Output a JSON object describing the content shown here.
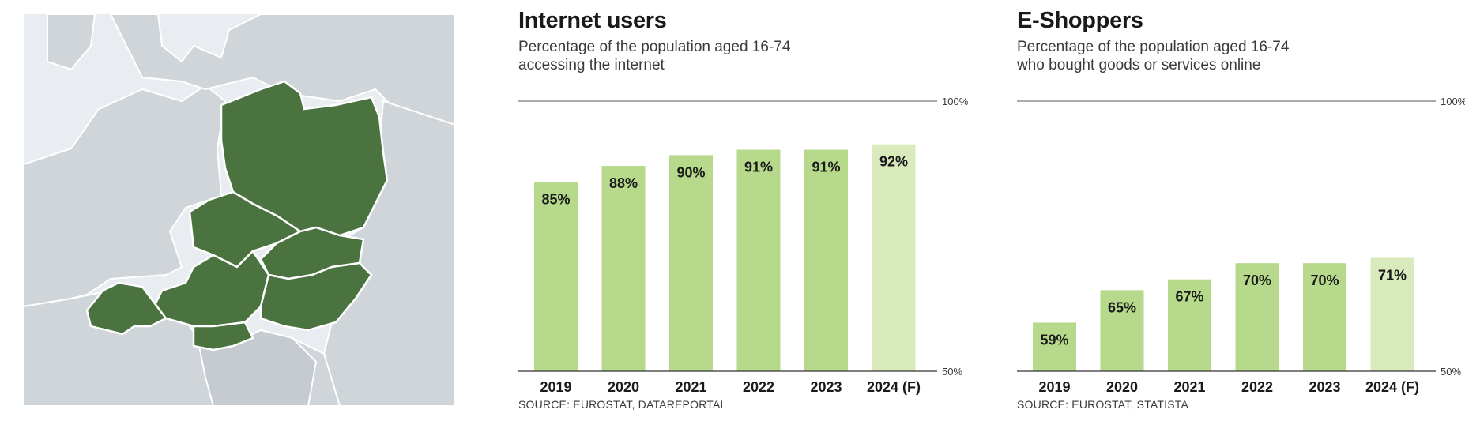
{
  "colors": {
    "bar": "#b6d98b",
    "bar_forecast": "#d9eabd",
    "map_highlight": "#4a7340",
    "map_land": "#d0d5da",
    "map_sea": "#e9edf1",
    "map_border": "#ffffff"
  },
  "chart_data": [
    {
      "type": "bar",
      "title": "Internet users",
      "subtitle_line1": "Percentage of the population aged 16-74",
      "subtitle_line2": "accessing the internet",
      "categories": [
        "2019",
        "2020",
        "2021",
        "2022",
        "2023",
        "2024 (F)"
      ],
      "values": [
        85,
        88,
        90,
        91,
        91,
        92
      ],
      "value_labels": [
        "85%",
        "88%",
        "90%",
        "91%",
        "91%",
        "92%"
      ],
      "forecast_index": 5,
      "ylim": [
        50,
        100
      ],
      "ref_labels": {
        "top": "100%",
        "bottom": "50%"
      },
      "source": "SOURCE: EUROSTAT, DATAREPORTAL"
    },
    {
      "type": "bar",
      "title": "E-Shoppers",
      "subtitle_line1": "Percentage of the population aged 16-74",
      "subtitle_line2": "who bought goods or services online",
      "categories": [
        "2019",
        "2020",
        "2021",
        "2022",
        "2023",
        "2024 (F)"
      ],
      "values": [
        59,
        65,
        67,
        70,
        70,
        71
      ],
      "value_labels": [
        "59%",
        "65%",
        "67%",
        "70%",
        "70%",
        "71%"
      ],
      "forecast_index": 5,
      "ylim": [
        50,
        100
      ],
      "ref_labels": {
        "top": "100%",
        "bottom": "50%"
      },
      "source": "SOURCE: EUROSTAT, STATISTA"
    }
  ]
}
